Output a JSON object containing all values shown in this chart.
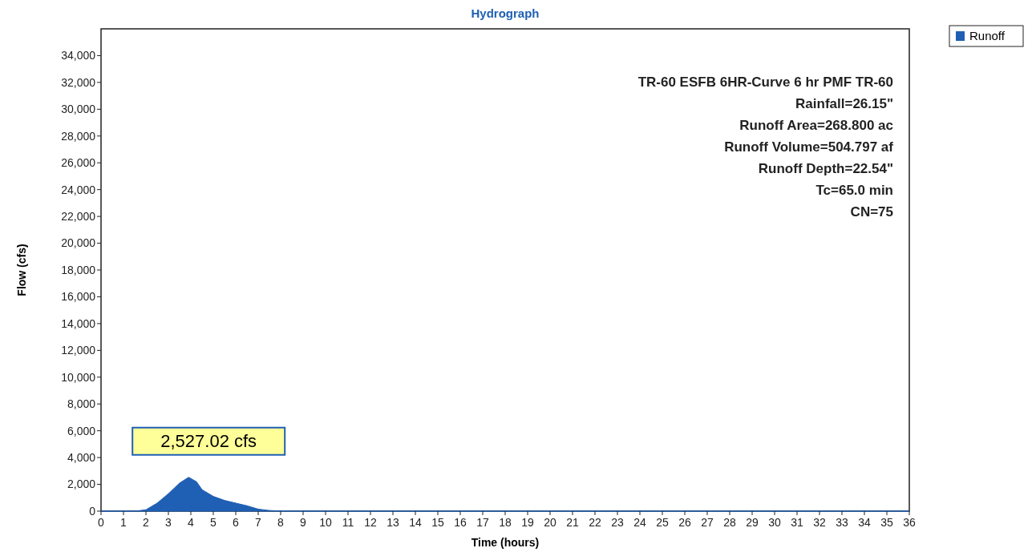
{
  "chart_data": {
    "type": "area",
    "title": "Hydrograph",
    "xlabel": "Time  (hours)",
    "ylabel": "Flow  (cfs)",
    "x": [
      0,
      1,
      1.5,
      2,
      2.5,
      3,
      3.5,
      3.9,
      4.25,
      4.5,
      5,
      5.5,
      6,
      6.5,
      7,
      7.5,
      8,
      8.5,
      9,
      12,
      18,
      24,
      30,
      36
    ],
    "series": [
      {
        "name": "Runoff",
        "color": "#1f5fb4",
        "values": [
          0,
          0,
          0,
          100,
          600,
          1300,
          2100,
          2527.02,
          2200,
          1600,
          1100,
          800,
          600,
          400,
          150,
          50,
          10,
          0,
          0,
          0,
          0,
          0,
          0,
          0
        ]
      }
    ],
    "xlim": [
      0,
      36
    ],
    "xticks": [
      0,
      1,
      2,
      3,
      4,
      5,
      6,
      7,
      8,
      9,
      10,
      11,
      12,
      13,
      14,
      15,
      16,
      17,
      18,
      19,
      20,
      21,
      22,
      23,
      24,
      25,
      26,
      27,
      28,
      29,
      30,
      31,
      32,
      33,
      34,
      35,
      36
    ],
    "ylim": [
      0,
      36000
    ],
    "yticks": [
      {
        "value": 0,
        "label": "0"
      },
      {
        "value": 2000,
        "label": "2,000"
      },
      {
        "value": 4000,
        "label": "4,000"
      },
      {
        "value": 6000,
        "label": "6,000"
      },
      {
        "value": 8000,
        "label": "8,000"
      },
      {
        "value": 10000,
        "label": "10,000"
      },
      {
        "value": 12000,
        "label": "12,000"
      },
      {
        "value": 14000,
        "label": "14,000"
      },
      {
        "value": 16000,
        "label": "16,000"
      },
      {
        "value": 18000,
        "label": "18,000"
      },
      {
        "value": 20000,
        "label": "20,000"
      },
      {
        "value": 22000,
        "label": "22,000"
      },
      {
        "value": 24000,
        "label": "24,000"
      },
      {
        "value": 26000,
        "label": "26,000"
      },
      {
        "value": 28000,
        "label": "28,000"
      },
      {
        "value": 30000,
        "label": "30,000"
      },
      {
        "value": 32000,
        "label": "32,000"
      },
      {
        "value": 34000,
        "label": "34,000"
      }
    ],
    "legend": "top right",
    "annotations": [
      {
        "text": "2,527.02 cfs",
        "x": 3.9,
        "y": 2527.02
      },
      "TR-60 ESFB 6HR-Curve 6 hr PMF TR-60",
      "Rainfall=26.15\"",
      "Runoff Area=268.800 ac",
      "Runoff Volume=504.797 af",
      "Runoff Depth=22.54\"",
      "Tc=65.0 min",
      "CN=75"
    ]
  }
}
